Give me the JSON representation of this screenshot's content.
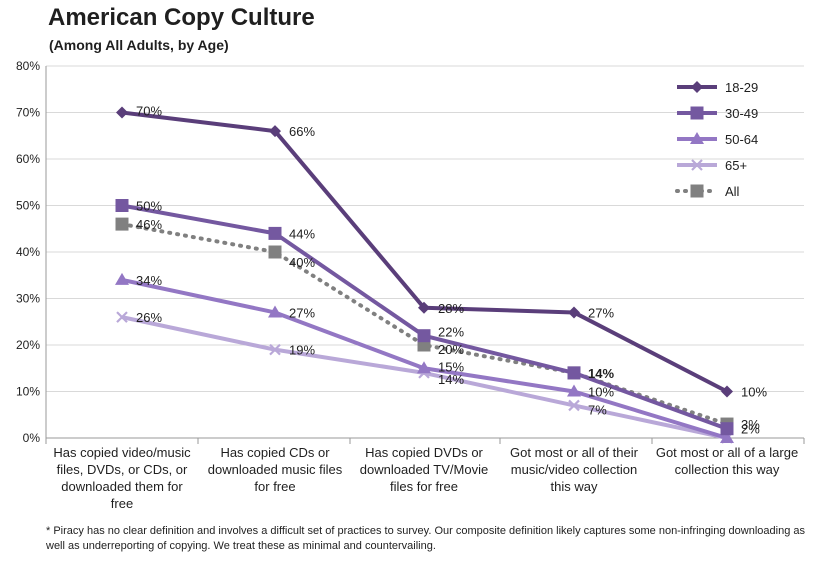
{
  "chart_data": {
    "type": "line",
    "title": "American Copy Culture",
    "subtitle": "(Among All Adults, by Age)",
    "footnote": "* Piracy has no clear definition and involves a difficult set of practices to survey.  Our composite definition likely captures some non-infringing downloading as well as underreporting of copying.  We treat these as minimal and countervailing.",
    "ylim": [
      0,
      80
    ],
    "y_ticks": [
      "0%",
      "10%",
      "20%",
      "30%",
      "40%",
      "50%",
      "60%",
      "70%",
      "80%"
    ],
    "grid": true,
    "legend_position": "top-right",
    "categories": [
      "Has copied video/music files, DVDs, or CDs, or downloaded them for free",
      "Has copied CDs or downloaded music files for free",
      "Has copied DVDs or downloaded TV/Movie files for free",
      "Got most or all of their music/video collection this way",
      "Got most or all of a large collection this way"
    ],
    "category_lines": [
      [
        "Has copied video/music",
        "files, DVDs, or CDs, or",
        "downloaded them for",
        "free"
      ],
      [
        "Has copied CDs or",
        "downloaded music files",
        "for free"
      ],
      [
        "Has copied DVDs or",
        "downloaded TV/Movie",
        "files for free"
      ],
      [
        "Got most or all of their",
        "music/video collection",
        "this way"
      ],
      [
        "Got most or all of a large",
        "collection this way"
      ]
    ],
    "series": [
      {
        "name": "18-29",
        "values": [
          70,
          66,
          28,
          27,
          10
        ],
        "labels": [
          "70%",
          "66%",
          "28%",
          "27%",
          "10%"
        ],
        "color": "#5a3e7a",
        "marker": "diamond"
      },
      {
        "name": "30-49",
        "values": [
          50,
          44,
          22,
          14,
          2
        ],
        "labels": [
          "50%",
          "44%",
          "22%",
          "",
          "2%"
        ],
        "color": "#7458a0",
        "marker": "square"
      },
      {
        "name": "50-64",
        "values": [
          34,
          27,
          15,
          10,
          0
        ],
        "labels": [
          "34%",
          "27%",
          "15%",
          "10%",
          ""
        ],
        "color": "#9377c4",
        "marker": "triangle"
      },
      {
        "name": "65+",
        "values": [
          26,
          19,
          14,
          7,
          0
        ],
        "labels": [
          "26%",
          "19%",
          "14%",
          "7%",
          ""
        ],
        "color": "#b9a8d8",
        "marker": "x"
      },
      {
        "name": "All",
        "values": [
          46,
          40,
          20,
          14,
          3
        ],
        "labels": [
          "46%",
          "40%",
          "20%",
          "14%",
          "3%"
        ],
        "color": "#808080",
        "marker": "square",
        "dotted": true
      }
    ]
  }
}
